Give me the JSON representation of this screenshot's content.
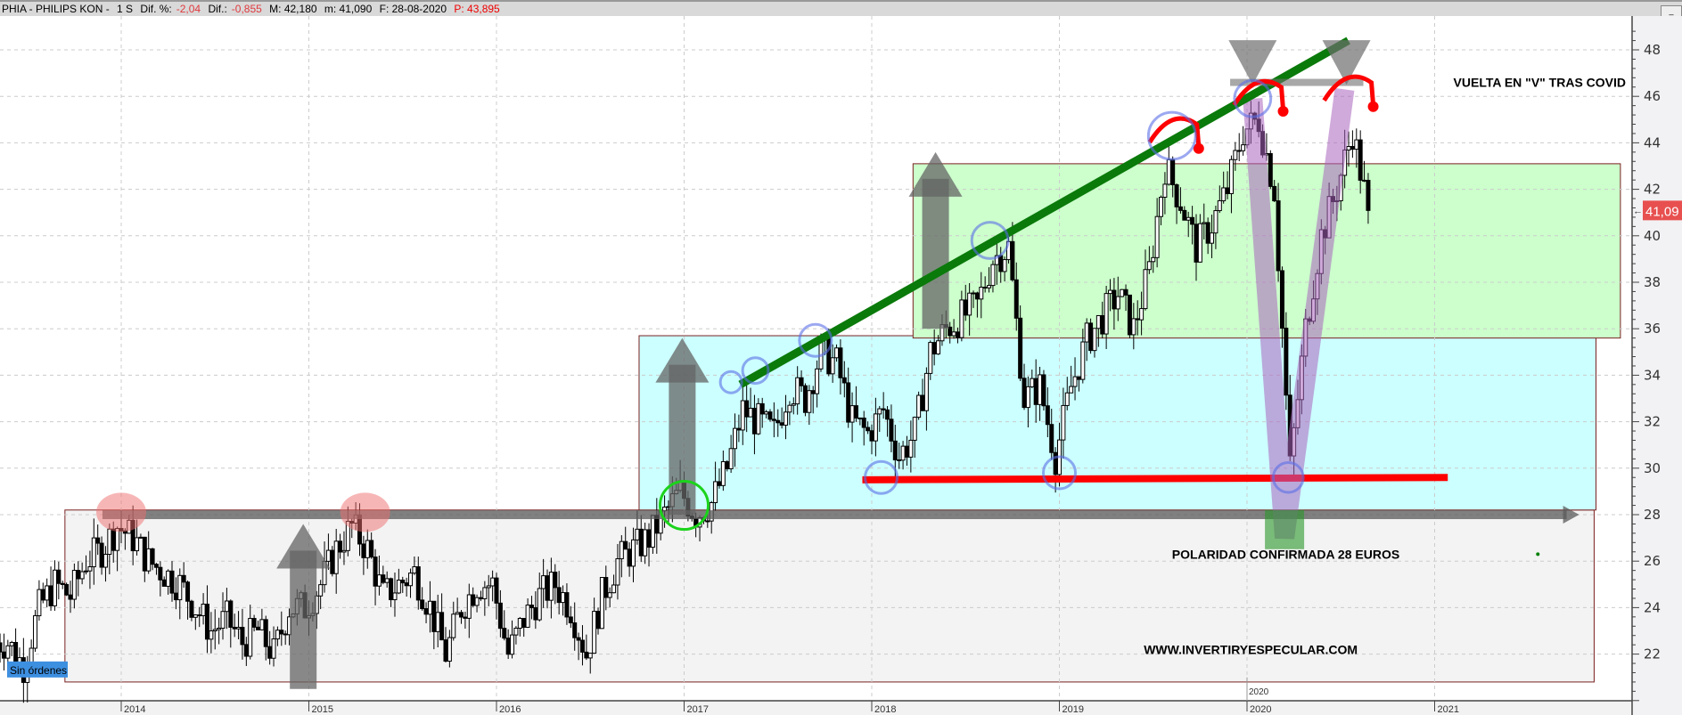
{
  "header": {
    "symbol": "PHIA - PHILIPS KON -",
    "timeframe": "1 S",
    "dif_pct_label": "Dif. %:",
    "dif_pct": "-2,04",
    "dif_label": "Dif.:",
    "dif": "-0,855",
    "max": "M: 42,180",
    "min": "m: 41,090",
    "date": "F: 28-08-2020",
    "price": "P: 43,895"
  },
  "status_badge": "Sin órdenes",
  "colors": {
    "green_box": "#ccffcc",
    "cyan_box": "#ccffff",
    "gray_box": "#f3f3f3",
    "box_border": "#7a2020",
    "trend": "#0a7a0a",
    "support": "#ff0000",
    "last_price": "#e85050",
    "badge": "#3d8fe0"
  },
  "chart_data": {
    "type": "candlestick",
    "xlabel": "",
    "ylabel": "",
    "ylim": [
      20,
      49
    ],
    "yticks": [
      "22",
      "24",
      "26",
      "28",
      "30",
      "32",
      "34",
      "36",
      "38",
      "40",
      "42",
      "44",
      "46",
      "48"
    ],
    "xticks": [
      "2014",
      "2015",
      "2016",
      "2017",
      "2018",
      "2019",
      "2020",
      "2021"
    ],
    "grid": true,
    "last_price_label": "41,09",
    "last_price": 41.09,
    "start_month": "2013-05",
    "monthly_close": [
      22.5,
      21.5,
      24,
      25,
      24.5,
      26,
      26.5,
      27.5,
      27,
      26,
      25.5,
      25,
      24,
      23,
      23.5,
      22.5,
      23,
      22,
      24,
      24,
      25,
      26.5,
      27.5,
      26.5,
      24.5,
      25,
      25.5,
      24,
      22,
      24,
      25,
      25,
      22,
      23.5,
      24.5,
      25,
      24,
      22,
      24.5,
      26,
      26.5,
      27,
      28,
      29,
      28,
      28.5,
      30,
      32.5,
      32,
      31.5,
      33.5,
      33,
      35,
      34.5,
      32,
      31.5,
      32.5,
      30.5,
      31.5,
      35,
      36,
      36.5,
      37,
      39,
      39.5,
      33,
      33.5,
      30.5,
      33.5,
      35.5,
      36.5,
      37.5,
      36,
      38.5,
      43,
      41.5,
      39.5,
      40.5,
      42,
      44.5,
      45,
      42,
      30,
      36,
      40,
      42,
      44.5,
      41.09
    ],
    "annotations": {
      "zones": [
        {
          "from": 2013.7,
          "to": 2021.85,
          "low": 20.8,
          "high": 28.2,
          "color": "#f3f3f3"
        },
        {
          "from": 2016.76,
          "to": 2021.86,
          "low": 28.2,
          "high": 35.7,
          "color": "#ccffff"
        },
        {
          "from": 2018.22,
          "to": 2021.99,
          "low": 35.6,
          "high": 43.1,
          "color": "#ccffcc"
        }
      ],
      "trendline": {
        "from": [
          2017.3,
          33.6
        ],
        "to": [
          2020.54,
          48.4
        ]
      },
      "support_line": {
        "from": [
          2017.95,
          29.5
        ],
        "to": [
          2021.07,
          29.6
        ]
      },
      "polarity_arrow": {
        "from": [
          2013.9,
          28.0
        ],
        "to": [
          2021.77,
          28.0
        ]
      },
      "up_arrows": [
        [
          2014.97,
          20.5,
          27.6
        ],
        [
          2016.99,
          28.0,
          35.6
        ],
        [
          2018.34,
          36.0,
          43.6
        ]
      ],
      "top_markers": [
        [
          2020.03,
          46.5
        ],
        [
          2020.53,
          46.5
        ]
      ],
      "top_bar": {
        "from": 2019.91,
        "to": 2020.62,
        "price": 46.6
      },
      "v_shape": [
        [
          2020.03,
          45.9
        ],
        [
          2020.2,
          27.0
        ],
        [
          2020.52,
          46.3
        ]
      ],
      "blue_circles": [
        [
          2017.25,
          33.7,
          1
        ],
        [
          2017.38,
          34.2,
          1.2
        ],
        [
          2017.7,
          35.5,
          1.5
        ],
        [
          2018.05,
          29.6,
          1.5
        ],
        [
          2018.63,
          39.8,
          1.7
        ],
        [
          2019.0,
          29.8,
          1.5
        ],
        [
          2019.6,
          44.3,
          2.2
        ],
        [
          2020.03,
          45.9,
          1.7
        ],
        [
          2020.22,
          29.6,
          1.4
        ]
      ],
      "resistance_circles": [
        [
          2014.0,
          28.1
        ],
        [
          2015.3,
          28.1
        ]
      ],
      "breakout_circle": [
        2017.0,
        28.4
      ],
      "texts": [
        {
          "text": "VUELTA EN \"V\" TRAS COVID",
          "at": [
            2021.1,
            46.6
          ]
        },
        {
          "text": "POLARIDAD CONFIRMADA 28 EUROS",
          "at": [
            2019.6,
            26.3
          ]
        },
        {
          "text": "WWW.INVERTIRYESPECULAR.COM",
          "at": [
            2019.45,
            22.2
          ]
        }
      ],
      "year_marker": {
        "text": "2020",
        "at": [
          2020.0,
          20.5
        ]
      }
    }
  }
}
